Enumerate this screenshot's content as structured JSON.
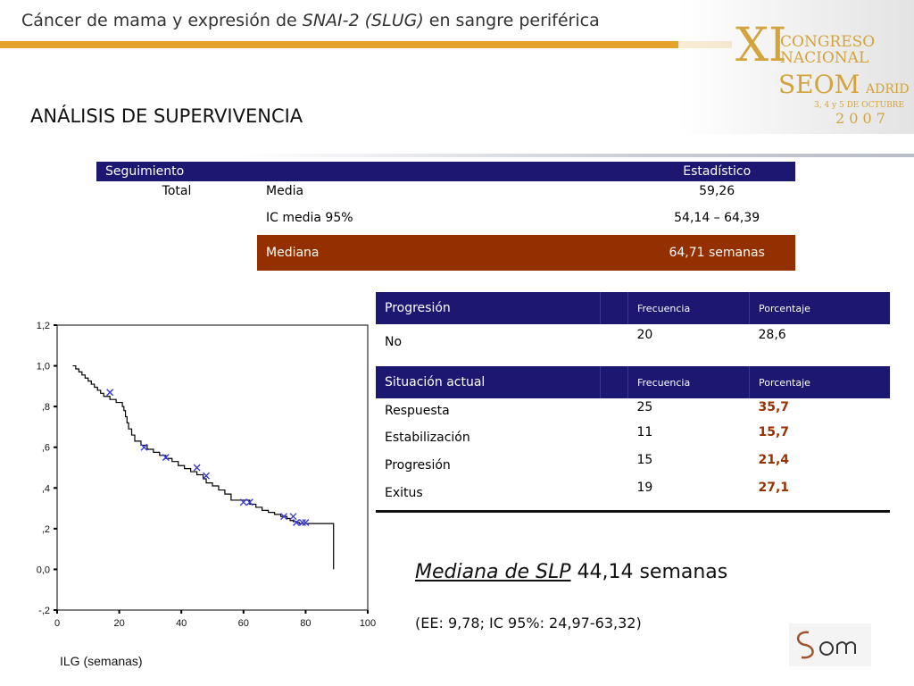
{
  "header": {
    "title_prefix": "Cáncer de mama y expresión de ",
    "title_gene": "SNAI-2 (SLUG)",
    "title_suffix": " en sangre periférica"
  },
  "logo": {
    "roman": "XI",
    "line1": "CONGRESO",
    "line2": "NACIONAL",
    "org": "SEOM",
    "city": "ADRID",
    "dates": "3, 4 y 5 DE OCTUBRE",
    "year": "2 0 0 7"
  },
  "section_title": "ANÁLISIS DE SUPERVIVENCIA",
  "survival_table": {
    "header_left": "Seguimiento",
    "header_right": "Estadístico",
    "row1": {
      "col1": "Total",
      "col2": "Media",
      "col3": "59,26"
    },
    "row2": {
      "col2": "IC media 95%",
      "col3": "54,14 – 64,39"
    },
    "row3": {
      "col2": "Mediana",
      "col3": "64,71 semanas"
    }
  },
  "progression_table": {
    "header": "Progresión",
    "freq_label": "Frecuencia",
    "pct_label": "Porcentaje",
    "row": {
      "label": "No",
      "freq": "20",
      "pct": "28,6"
    }
  },
  "situation_table": {
    "header": "Situación actual",
    "freq_label": "Frecuencia",
    "pct_label": "Porcentaje",
    "rows": [
      {
        "label": "Respuesta",
        "freq": "25",
        "pct": "35,7"
      },
      {
        "label": "Estabilización",
        "freq": "11",
        "pct": "15,7"
      },
      {
        "label": "Progresión",
        "freq": "15",
        "pct": "21,4"
      },
      {
        "label": "Exitus",
        "freq": "19",
        "pct": "27,1"
      }
    ]
  },
  "median_slp": {
    "label": "Mediana de SLP",
    "value": "44,14 semanas"
  },
  "ee_line": "(EE: 9,78; IC 95%: 24,97-63,32)",
  "colors": {
    "navy": "#1c1872",
    "rust": "#943000",
    "gold": "#e5a22d",
    "censor": "#3b3bd8"
  },
  "chart_data": {
    "type": "line",
    "xlabel": "ILG (semanas)",
    "ylabel": "",
    "xlim": [
      0,
      100
    ],
    "ylim": [
      -0.2,
      1.2
    ],
    "x_ticks": [
      "0",
      "20",
      "40",
      "60",
      "80",
      "100"
    ],
    "y_ticks": [
      "-,2",
      "0,0",
      ",2",
      ",4",
      ",6",
      ",8",
      "1,0",
      "1,2"
    ],
    "series": [
      {
        "x": [
          5,
          6,
          7,
          8,
          9,
          10,
          11,
          12,
          13,
          14,
          15,
          17,
          19,
          21,
          21.5,
          22,
          22.5,
          23,
          24,
          25,
          27,
          29,
          31,
          33,
          35,
          37,
          39,
          41,
          43,
          45,
          47,
          48,
          50,
          52,
          54,
          56,
          60,
          62,
          64,
          66,
          68,
          70,
          72,
          74,
          75,
          76,
          77,
          78,
          80,
          89,
          89
        ],
        "y": [
          1.0,
          0.985,
          0.97,
          0.955,
          0.94,
          0.925,
          0.91,
          0.895,
          0.88,
          0.865,
          0.85,
          0.835,
          0.82,
          0.8,
          0.78,
          0.75,
          0.72,
          0.69,
          0.66,
          0.63,
          0.61,
          0.59,
          0.575,
          0.56,
          0.545,
          0.53,
          0.51,
          0.495,
          0.48,
          0.465,
          0.445,
          0.425,
          0.41,
          0.39,
          0.37,
          0.34,
          0.34,
          0.32,
          0.305,
          0.29,
          0.28,
          0.27,
          0.26,
          0.25,
          0.24,
          0.235,
          0.23,
          0.225,
          0.225,
          0.225,
          0.0
        ]
      }
    ],
    "censored": [
      {
        "x": 17,
        "y": 0.87
      },
      {
        "x": 28,
        "y": 0.6
      },
      {
        "x": 35,
        "y": 0.55
      },
      {
        "x": 45,
        "y": 0.5
      },
      {
        "x": 48,
        "y": 0.46
      },
      {
        "x": 60,
        "y": 0.33
      },
      {
        "x": 62,
        "y": 0.33
      },
      {
        "x": 73,
        "y": 0.26
      },
      {
        "x": 76,
        "y": 0.26
      },
      {
        "x": 77,
        "y": 0.23
      },
      {
        "x": 79,
        "y": 0.23
      },
      {
        "x": 80,
        "y": 0.23
      }
    ]
  }
}
